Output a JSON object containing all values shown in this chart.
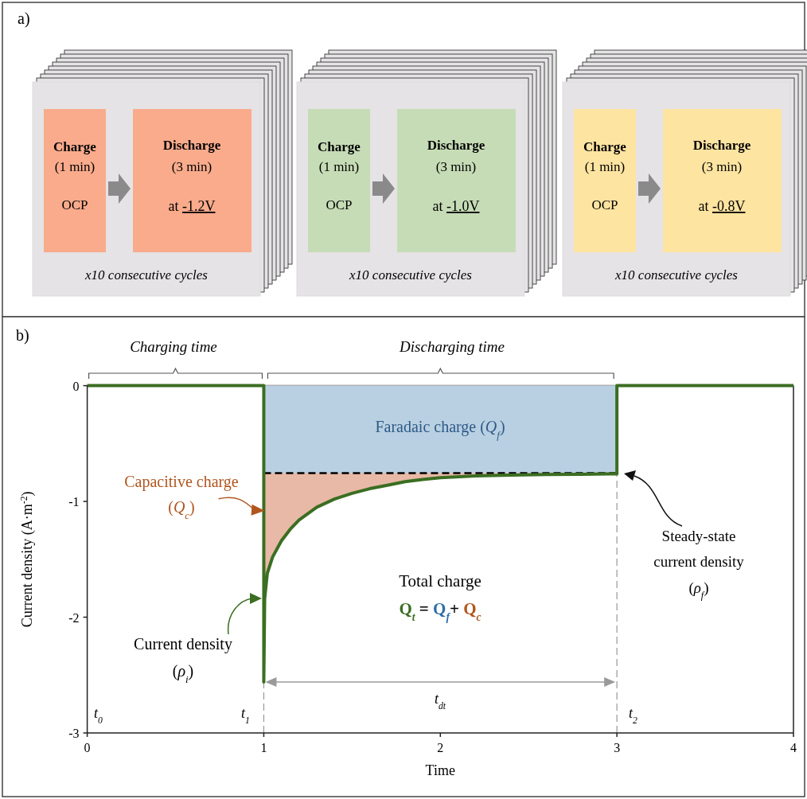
{
  "chart_data": [
    {
      "type": "other",
      "title": "a)",
      "annotations": [
        "Charge",
        "(1 min)",
        "OCP",
        "Discharge",
        "(3 min)",
        "at -1.2V",
        "x10 consecutive cycles",
        "Charge",
        "(1 min)",
        "OCP",
        "Discharge",
        "(3 min)",
        "at -1.0V",
        "x10 consecutive cycles",
        "Charge",
        "(1 min)",
        "OCP",
        "Discharge",
        "(3 min)",
        "at -0.8V",
        "x10 consecutive cycles"
      ]
    },
    {
      "type": "line",
      "title": "b)",
      "xlabel": "Time",
      "ylabel": "Current density (A·m$^{-2}$)",
      "xlim": [
        0,
        4
      ],
      "ylim": [
        -3,
        0
      ],
      "xticks": [
        0,
        1,
        2,
        3,
        4
      ],
      "yticks": [
        0,
        -1,
        -2,
        -3
      ],
      "series": [
        {
          "type": "area",
          "color": "#e8b9a6",
          "x": [
            1.005,
            1.02,
            1.05,
            1.1,
            1.15,
            1.2,
            1.3,
            1.4,
            1.5,
            1.6,
            1.7,
            1.8,
            1.9,
            2,
            2.2,
            2.4,
            2.6,
            2.8,
            3
          ],
          "values": [
            -1.84,
            -1.62,
            -1.48,
            -1.34,
            -1.24,
            -1.16,
            -1.05,
            -0.98,
            -0.93,
            -0.89,
            -0.86,
            -0.83,
            -0.81,
            -0.795,
            -0.78,
            -0.772,
            -0.768,
            -0.765,
            -0.762
          ]
        },
        {
          "type": "area",
          "color": "#b9d0e2",
          "line_style": "dashed",
          "x": [
            1,
            3
          ],
          "values": [
            -0.755,
            -0.755
          ]
        },
        {
          "type": "line",
          "color": "#3b6e22",
          "line_style": "solid",
          "x": [
            0,
            1,
            1,
            1.005,
            1.02,
            1.05,
            1.1,
            1.15,
            1.2,
            1.3,
            1.4,
            1.5,
            1.6,
            1.7,
            1.8,
            1.9,
            2,
            2.2,
            2.4,
            2.6,
            2.8,
            3,
            3,
            4
          ],
          "values": [
            0,
            0,
            -2.56,
            -1.84,
            -1.62,
            -1.48,
            -1.34,
            -1.24,
            -1.16,
            -1.05,
            -0.98,
            -0.93,
            -0.89,
            -0.86,
            -0.83,
            -0.81,
            -0.795,
            -0.78,
            -0.772,
            -0.768,
            -0.765,
            -0.762,
            0,
            0
          ]
        }
      ],
      "ref_lines": [
        {
          "axis": "x",
          "value": 1,
          "color": "#999999",
          "line_style": "dashed"
        },
        {
          "axis": "x",
          "value": 3,
          "color": "#999999",
          "line_style": "dashed"
        }
      ],
      "annotations": [
        "Charging time",
        "Discharging time",
        "Faradaic charge (Q$_{f}$)",
        {
          "text": "Capacitive charge",
          "x": 1.005,
          "y": -1.08
        },
        "(Q$_{c}$)",
        "Total charge",
        "Q$_{t}$ = Q$_{f}$+ Q$_{c}$",
        "Current density",
        "(ρ$_{i}$)",
        "Steady-state",
        "current density",
        "(ρ$_{f}$)",
        "t$_{0}$",
        "t$_{1}$",
        "t$_{dt}$",
        "t$_{2}$"
      ]
    }
  ]
}
